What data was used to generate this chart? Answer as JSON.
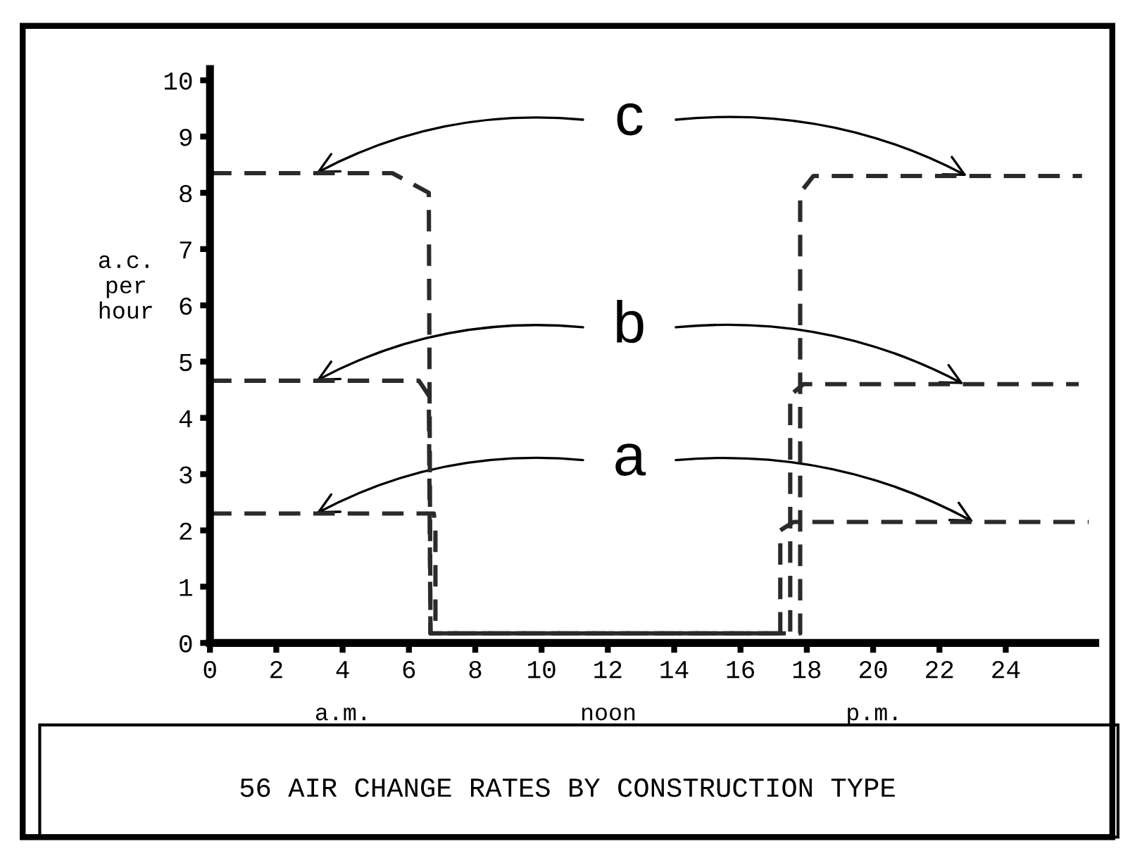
{
  "chart_data": {
    "type": "line",
    "title": "56 AIR CHANGE RATES BY CONSTRUCTION TYPE",
    "ylabel": "a.c.\nper\nhour",
    "annotations": [
      "a.m.",
      "noon",
      "p.m."
    ],
    "series": [
      {
        "name": "c",
        "color": "#2a2a2a",
        "x": [
          0,
          5.5,
          6.6,
          6.65,
          17.8,
          17.8,
          18.2,
          26.3
        ],
        "values": [
          8.35,
          8.35,
          8.0,
          0.17,
          0.17,
          8.0,
          8.3,
          8.3
        ]
      },
      {
        "name": "b",
        "color": "#2a2a2a",
        "x": [
          0,
          6.3,
          6.6,
          6.65,
          17.5,
          17.5,
          17.9,
          26.2
        ],
        "values": [
          4.66,
          4.66,
          4.4,
          0.17,
          0.17,
          4.4,
          4.6,
          4.6
        ]
      },
      {
        "name": "a",
        "color": "#2a2a2a",
        "x": [
          0,
          6.75,
          6.8,
          6.8,
          17.2,
          17.2,
          17.6,
          26.5
        ],
        "values": [
          2.3,
          2.3,
          2.05,
          0.17,
          0.17,
          2.0,
          2.15,
          2.15
        ]
      }
    ],
    "xlim": [
      0,
      26.7
    ],
    "ylim": [
      0,
      10.2
    ],
    "xticks": [
      0,
      2,
      4,
      6,
      8,
      10,
      12,
      14,
      16,
      18,
      20,
      22,
      24
    ],
    "yticks": [
      0,
      1,
      2,
      3,
      4,
      5,
      6,
      7,
      8,
      9,
      10
    ],
    "line_style": "dashed",
    "marker": "none",
    "grid": false,
    "legend": false
  }
}
